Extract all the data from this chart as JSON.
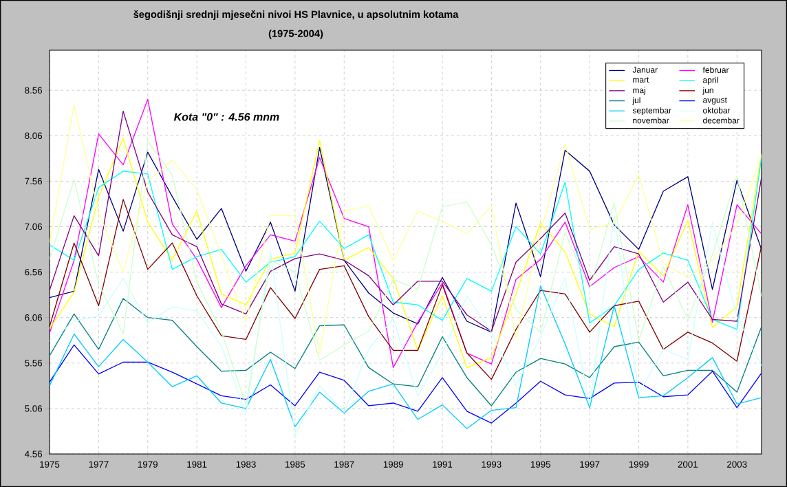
{
  "chart_data": {
    "type": "line",
    "title": "šegodišnji srednji mjesečni nivoi HS Plavnice,  u apsolutnim kotama",
    "subtitle": "(1975-2004)",
    "annotations": [
      "Kota \"0\" :  4.56 mnm"
    ],
    "x": [
      1975,
      1976,
      1977,
      1978,
      1979,
      1980,
      1981,
      1982,
      1983,
      1984,
      1985,
      1986,
      1987,
      1988,
      1989,
      1990,
      1991,
      1992,
      1993,
      1994,
      1995,
      1996,
      1997,
      1998,
      1999,
      2000,
      2001,
      2002,
      2003,
      2004
    ],
    "xlim": [
      1975,
      2004
    ],
    "xticks": [
      1975,
      1977,
      1979,
      1981,
      1983,
      1985,
      1987,
      1989,
      1991,
      1993,
      1995,
      1997,
      1999,
      2001,
      2003
    ],
    "ylim": [
      4.56,
      9.0
    ],
    "yticks": [
      4.56,
      5.06,
      5.56,
      6.06,
      6.56,
      7.06,
      7.56,
      8.06,
      8.56
    ],
    "grid": true,
    "legend": "top right",
    "marker": "none",
    "line_style": "solid",
    "series": [
      {
        "name": "Januar",
        "color": "#000080",
        "values": [
          6.28,
          6.35,
          7.69,
          7.01,
          7.88,
          7.39,
          6.92,
          7.26,
          6.57,
          7.11,
          6.35,
          7.93,
          6.69,
          6.33,
          6.11,
          5.99,
          6.5,
          6.02,
          5.9,
          7.32,
          6.51,
          7.9,
          7.67,
          7.08,
          6.81,
          7.45,
          7.61,
          6.37,
          7.57,
          6.81
        ]
      },
      {
        "name": "februar",
        "color": "#ff00ff",
        "values": [
          5.89,
          6.69,
          8.08,
          7.74,
          8.46,
          7.09,
          6.7,
          6.17,
          6.63,
          6.97,
          6.9,
          7.82,
          7.15,
          7.06,
          5.51,
          6.01,
          6.44,
          5.67,
          5.55,
          6.48,
          6.7,
          7.11,
          6.4,
          6.61,
          6.73,
          6.45,
          7.3,
          6.01,
          7.3,
          6.98
        ]
      },
      {
        "name": "mart",
        "color": "#ffff00",
        "values": [
          5.94,
          6.34,
          7.39,
          8.03,
          7.11,
          6.69,
          7.23,
          6.32,
          6.2,
          6.7,
          6.77,
          8.01,
          6.69,
          6.83,
          6.49,
          5.7,
          6.3,
          5.51,
          5.62,
          6.32,
          7.1,
          6.78,
          6.1,
          5.96,
          6.79,
          6.52,
          7.13,
          5.95,
          6.18,
          7.86
        ]
      },
      {
        "name": "april",
        "color": "#00ffff",
        "values": [
          6.86,
          6.69,
          7.49,
          7.67,
          7.64,
          6.59,
          6.73,
          6.81,
          6.45,
          6.67,
          6.73,
          7.12,
          6.82,
          6.97,
          6.23,
          6.2,
          6.03,
          6.49,
          6.35,
          7.06,
          6.76,
          7.55,
          6.0,
          6.19,
          6.59,
          6.77,
          6.69,
          6.04,
          5.93,
          7.82
        ]
      },
      {
        "name": "maj",
        "color": "#800080",
        "values": [
          6.36,
          7.18,
          6.74,
          8.33,
          7.44,
          6.97,
          6.84,
          6.21,
          6.1,
          6.57,
          6.71,
          6.76,
          6.69,
          6.52,
          6.2,
          6.46,
          6.46,
          6.09,
          5.91,
          6.67,
          6.93,
          7.21,
          6.47,
          6.84,
          6.76,
          6.23,
          6.45,
          6.04,
          6.02,
          7.6
        ]
      },
      {
        "name": "jun",
        "color": "#800000",
        "values": [
          5.96,
          6.88,
          6.19,
          7.36,
          6.59,
          6.88,
          6.3,
          5.86,
          5.82,
          6.39,
          6.05,
          6.59,
          6.63,
          6.07,
          5.7,
          5.7,
          6.42,
          5.67,
          5.38,
          5.93,
          6.36,
          6.32,
          5.9,
          6.19,
          6.24,
          5.71,
          5.9,
          5.78,
          5.58,
          6.85
        ]
      },
      {
        "name": "jul",
        "color": "#008080",
        "values": [
          5.64,
          6.1,
          5.71,
          6.27,
          6.06,
          6.03,
          5.74,
          5.47,
          5.48,
          5.68,
          5.5,
          5.97,
          5.98,
          5.51,
          5.33,
          5.3,
          5.85,
          5.4,
          5.09,
          5.46,
          5.61,
          5.55,
          5.4,
          5.74,
          5.79,
          5.42,
          5.48,
          5.48,
          5.24,
          5.96
        ]
      },
      {
        "name": "avgust",
        "color": "#0000ff",
        "values": [
          5.35,
          5.76,
          5.44,
          5.57,
          5.57,
          5.46,
          5.33,
          5.2,
          5.16,
          5.32,
          5.09,
          5.46,
          5.37,
          5.09,
          5.12,
          5.03,
          5.4,
          5.03,
          4.9,
          5.12,
          5.36,
          5.21,
          5.17,
          5.34,
          5.35,
          5.19,
          5.21,
          5.47,
          5.07,
          5.45
        ]
      },
      {
        "name": "septembar",
        "color": "#00ccff",
        "values": [
          5.31,
          5.88,
          5.52,
          5.82,
          5.57,
          5.3,
          5.42,
          5.12,
          5.06,
          5.6,
          4.86,
          5.24,
          5.01,
          5.25,
          5.33,
          4.94,
          5.1,
          4.84,
          5.04,
          5.07,
          6.41,
          5.77,
          5.07,
          6.19,
          5.18,
          5.2,
          5.4,
          5.62,
          5.11,
          5.18
        ]
      },
      {
        "name": "oktobar",
        "color": "#ccffff",
        "values": [
          5.8,
          6.02,
          6.08,
          6.49,
          6.0,
          6.18,
          6.13,
          5.75,
          5.0,
          6.79,
          4.77,
          5.31,
          5.02,
          5.71,
          6.05,
          5.2,
          5.67,
          6.3,
          5.9,
          5.31,
          5.85,
          6.5,
          5.1,
          7.19,
          5.22,
          5.71,
          5.6,
          7.11,
          6.07,
          5.53
        ]
      },
      {
        "name": "novembar",
        "color": "#ccffcc",
        "values": [
          6.7,
          7.58,
          6.43,
          5.88,
          8.0,
          7.63,
          6.45,
          5.91,
          5.1,
          6.69,
          6.56,
          5.59,
          5.76,
          5.91,
          6.48,
          6.37,
          7.28,
          7.33,
          6.86,
          6.15,
          5.9,
          7.0,
          6.37,
          7.32,
          5.81,
          6.62,
          6.04,
          6.75,
          7.62,
          6.29
        ]
      },
      {
        "name": "decembar",
        "color": "#ffff99",
        "values": [
          6.88,
          8.4,
          7.21,
          6.56,
          7.56,
          7.79,
          7.47,
          6.74,
          6.02,
          7.18,
          7.18,
          5.66,
          7.23,
          7.29,
          6.69,
          7.23,
          7.12,
          6.98,
          7.29,
          5.83,
          7.0,
          7.97,
          7.03,
          7.1,
          7.63,
          6.66,
          6.5,
          6.69,
          7.08,
          7.84
        ]
      }
    ]
  }
}
